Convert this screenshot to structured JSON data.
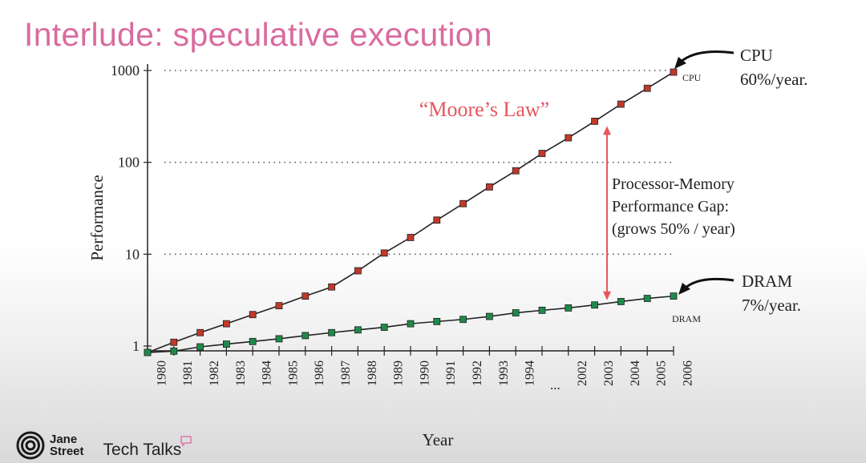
{
  "slide": {
    "title": "Interlude: speculative execution"
  },
  "annotations": {
    "moores_law": "“Moore’s Law”",
    "gap_line1": "Processor-Memory",
    "gap_line2": "Performance Gap:",
    "gap_line3": "(grows 50% / year)",
    "cpu_title": "CPU",
    "cpu_rate": "60%/year.",
    "dram_title": "DRAM",
    "dram_rate": "7%/year.",
    "cpu_series_label": "CPU",
    "dram_series_label": "DRAM",
    "ellipsis": "..."
  },
  "branding": {
    "logo_line1": "Jane",
    "logo_line2": "Street",
    "show_name": "Tech Talks"
  },
  "colors": {
    "title": "#d96b9f",
    "moores_law": "#e8555e",
    "gap_arrow": "#e8555e",
    "cpu_marker": "#c0392b",
    "dram_marker": "#1e8a4a"
  },
  "chart_data": {
    "type": "line",
    "xlabel": "Year",
    "ylabel": "Performance",
    "yscale": "log",
    "ylim": [
      1,
      1000
    ],
    "yticks": [
      1,
      10,
      100,
      1000
    ],
    "ytick_labels": [
      "1",
      "10",
      "100",
      "1000"
    ],
    "x_tick_labels": [
      "1980",
      "1981",
      "1982",
      "1983",
      "1984",
      "1985",
      "1986",
      "1987",
      "1988",
      "1989",
      "1990",
      "1991",
      "1992",
      "1993",
      "1994",
      "...",
      "2002",
      "2003",
      "2004",
      "2005",
      "2006"
    ],
    "grid": "horizontal dotted at 10, 100, 1000",
    "series": [
      {
        "name": "CPU",
        "values": [
          0.85,
          1.1,
          1.4,
          1.75,
          2.2,
          2.75,
          3.5,
          4.4,
          6.6,
          10.3,
          15.2,
          23.5,
          35.5,
          54,
          81,
          125,
          185,
          280,
          430,
          640,
          960
        ]
      },
      {
        "name": "DRAM",
        "values": [
          0.85,
          0.88,
          0.98,
          1.05,
          1.12,
          1.2,
          1.3,
          1.4,
          1.5,
          1.6,
          1.75,
          1.85,
          1.95,
          2.1,
          2.3,
          2.45,
          2.6,
          2.8,
          3.05,
          3.3,
          3.5
        ]
      }
    ],
    "gap_arrow_at": "2003"
  }
}
